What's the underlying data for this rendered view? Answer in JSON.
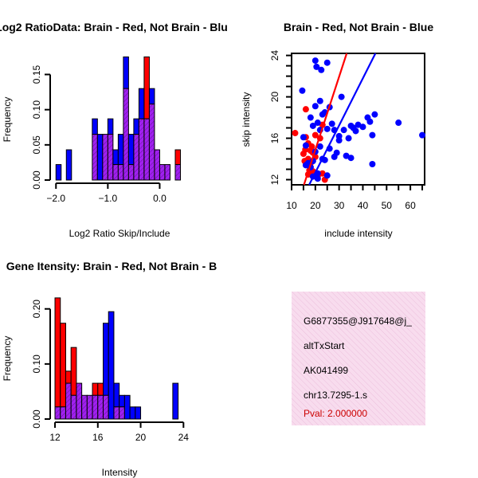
{
  "colors": {
    "brain": "#ff0000",
    "not_brain": "#0000ff",
    "overlap": "#a020f0",
    "info_bg": "#f7dcee",
    "pval": "#cc0000"
  },
  "chart_data": [
    {
      "type": "bar",
      "subtype": "overlapping-histogram",
      "title": "Log2 RatioData: Brain - Red, Not Brain - Blu",
      "xlabel": "Log2 Ratio Skip/Include",
      "ylabel": "Frequency",
      "xlim": [
        -2.05,
        0.5
      ],
      "ylim": [
        0,
        0.18
      ],
      "xticks": [
        -2.0,
        -1.0,
        0.0
      ],
      "xtick_labels": [
        "−2.0",
        "−1.0",
        "0.0"
      ],
      "yticks": [
        0.0,
        0.05,
        0.1,
        0.15
      ],
      "ytick_labels": [
        "0.00",
        "0.05",
        "0.10",
        "0.15"
      ],
      "bin_width": 0.1,
      "bin_starts": [
        -2.0,
        -1.9,
        -1.8,
        -1.7,
        -1.6,
        -1.5,
        -1.4,
        -1.3,
        -1.2,
        -1.1,
        -1.0,
        -0.9,
        -0.8,
        -0.7,
        -0.6,
        -0.5,
        -0.4,
        -0.3,
        -0.2,
        -0.1,
        0.0,
        0.1,
        0.2,
        0.3,
        0.4
      ],
      "series": [
        {
          "name": "Brain",
          "color": "red",
          "values": [
            0,
            0,
            0,
            0,
            0,
            0,
            0,
            0.065,
            0,
            0.065,
            0.065,
            0.022,
            0.022,
            0.13,
            0.022,
            0.065,
            0.087,
            0.175,
            0.108,
            0.043,
            0.022,
            0.022,
            0,
            0.043,
            0
          ]
        },
        {
          "name": "Not Brain",
          "color": "blue",
          "values": [
            0.022,
            0,
            0.043,
            0,
            0,
            0,
            0,
            0.087,
            0.065,
            0.065,
            0.087,
            0.043,
            0.065,
            0.175,
            0.065,
            0.087,
            0.13,
            0.087,
            0.13,
            0.043,
            0.022,
            0.022,
            0,
            0.022,
            0
          ]
        }
      ]
    },
    {
      "type": "scatter",
      "title": "Brain - Red, Not Brain - Blue",
      "xlabel": "include intensity",
      "ylabel": "skip intensity",
      "xlim": [
        10,
        66
      ],
      "ylim": [
        11.5,
        24.2
      ],
      "xticks": [
        10,
        20,
        30,
        40,
        50,
        60
      ],
      "xtick_labels": [
        "10",
        "20",
        "30",
        "40",
        "50",
        "60"
      ],
      "yticks": [
        12,
        16,
        20,
        24
      ],
      "ytick_labels": [
        "12",
        "16",
        "20",
        "24"
      ],
      "series": [
        {
          "name": "Brain",
          "color": "red",
          "x": [
            11.5,
            16,
            17,
            18,
            18.5,
            15,
            17,
            16.5,
            15.5,
            17.5,
            18,
            19,
            20,
            22,
            23,
            16,
            15.8,
            18,
            21,
            24,
            17,
            19,
            23,
            20
          ],
          "y": [
            16.5,
            18.8,
            15.5,
            14.8,
            15.2,
            14.5,
            14.0,
            13.5,
            13.8,
            12.9,
            13.6,
            14.6,
            16.3,
            16.0,
            17.3,
            16.1,
            14.9,
            13.2,
            12.3,
            12.0,
            12.5,
            12.8,
            12.6,
            14.2
          ]
        },
        {
          "name": "Not Brain",
          "color": "blue",
          "x": [
            20,
            20.5,
            22.5,
            25,
            20,
            22,
            24,
            26,
            14.5,
            15,
            16,
            18,
            19,
            21,
            23,
            25,
            27,
            28,
            30,
            31,
            32,
            34,
            35,
            36,
            37,
            38,
            40,
            42,
            43,
            44,
            45,
            55,
            65,
            19,
            20,
            22,
            23,
            24,
            26,
            28,
            29,
            30,
            33,
            35,
            18,
            17,
            16,
            21,
            25,
            44,
            21,
            19,
            22
          ],
          "y": [
            23.5,
            22.9,
            22.6,
            23.3,
            19.1,
            19.6,
            18.5,
            19.0,
            20.6,
            16.1,
            15.3,
            18.0,
            17.2,
            17.5,
            18.3,
            16.9,
            17.4,
            16.8,
            16.2,
            20.0,
            16.8,
            16.0,
            17.2,
            17.0,
            16.7,
            17.3,
            17.1,
            18.0,
            17.6,
            16.3,
            18.3,
            17.5,
            16.3,
            13.8,
            14.7,
            15.2,
            14.0,
            13.9,
            15.0,
            14.2,
            14.6,
            15.8,
            14.3,
            14.1,
            13.2,
            13.6,
            13.4,
            12.6,
            12.4,
            13.5,
            12.1,
            12.3,
            16.8
          ]
        }
      ],
      "fit_lines": [
        {
          "name": "Brain",
          "color": "red",
          "x1": 15.2,
          "y1": 11.5,
          "x2": 33.2,
          "y2": 24.2
        },
        {
          "name": "Not Brain",
          "color": "blue",
          "x1": 17.4,
          "y1": 11.5,
          "x2": 45.3,
          "y2": 24.2
        }
      ]
    },
    {
      "type": "bar",
      "subtype": "overlapping-histogram",
      "title": "Gene Itensity: Brain - Red, Not Brain - B",
      "xlabel": "Intensity",
      "ylabel": "Frequency",
      "xlim": [
        11.85,
        24.2
      ],
      "ylim": [
        0,
        0.23
      ],
      "xticks": [
        12,
        16,
        20,
        24
      ],
      "xtick_labels": [
        "12",
        "16",
        "20",
        "24"
      ],
      "yticks": [
        0.0,
        0.1,
        0.2
      ],
      "ytick_labels": [
        "0.00",
        "0.10",
        "0.20"
      ],
      "bin_width": 0.5,
      "bin_starts": [
        12.0,
        12.5,
        13.0,
        13.5,
        14.0,
        14.5,
        15.0,
        15.5,
        16.0,
        16.5,
        17.0,
        17.5,
        18.0,
        18.5,
        19.0,
        19.5,
        20.0,
        20.5,
        21.0,
        21.5,
        22.0,
        22.5,
        23.0,
        23.5
      ],
      "series": [
        {
          "name": "Brain",
          "color": "red",
          "values": [
            0.22,
            0.174,
            0.087,
            0.13,
            0.065,
            0.043,
            0.043,
            0.065,
            0.065,
            0.043,
            0,
            0.022,
            0.022,
            0,
            0,
            0,
            0,
            0,
            0,
            0,
            0,
            0,
            0,
            0
          ]
        },
        {
          "name": "Not Brain",
          "color": "blue",
          "values": [
            0.022,
            0.022,
            0.065,
            0.043,
            0.065,
            0.043,
            0.043,
            0.043,
            0.043,
            0.174,
            0.195,
            0.065,
            0.043,
            0.043,
            0.022,
            0.022,
            0,
            0,
            0,
            0,
            0,
            0,
            0.065,
            0
          ]
        }
      ]
    }
  ],
  "info_panel": {
    "id": "G6877355@J917648@j_",
    "event_type": "altTxStart",
    "accession": "AK041499",
    "location": "chr13.7295-1.s",
    "pval": "Pval: 2.000000"
  }
}
